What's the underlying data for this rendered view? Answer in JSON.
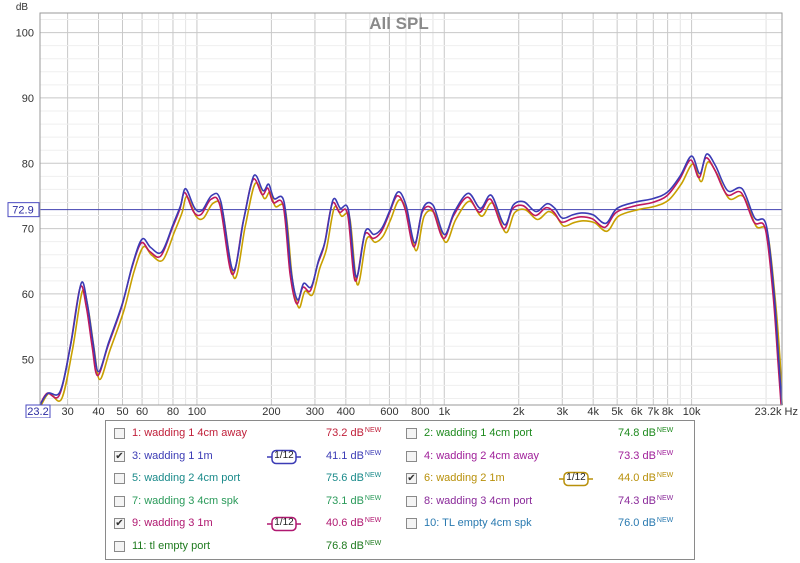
{
  "chart_data": {
    "type": "line",
    "title": "All SPL",
    "ylabel": "dB",
    "xlabel": "Hz",
    "xscale": "log",
    "xlim": [
      23.2,
      23200
    ],
    "ylim": [
      43,
      103
    ],
    "grid": true,
    "ref_line": 72.9,
    "ref_label": "72.9",
    "x_corner_label": "23.2",
    "x_end_label": "23.2k Hz",
    "y_ticks": [
      50,
      60,
      70,
      80,
      90,
      100
    ],
    "y_tick_labels": [
      "50",
      "60",
      "70",
      "80",
      "90",
      "100"
    ],
    "x_ticks": [
      30,
      40,
      50,
      60,
      80,
      100,
      200,
      300,
      400,
      600,
      800,
      1000,
      2000,
      3000,
      4000,
      5000,
      6000,
      7000,
      8000,
      10000
    ],
    "x_tick_labels": [
      "30",
      "40",
      "50",
      "60",
      "80",
      "100",
      "200",
      "300",
      "400",
      "600",
      "800",
      "1k",
      "2k",
      "3k",
      "4k",
      "5k",
      "6k",
      "7k",
      "8k",
      "10k"
    ],
    "series": [
      {
        "name": "3: wadding 1 1m",
        "color": "#3b3bb5",
        "offset": 0.6,
        "dxf": 1.0,
        "points": [
          [
            23.2,
            43
          ],
          [
            25,
            44.8
          ],
          [
            28,
            44.5
          ],
          [
            31,
            52
          ],
          [
            34,
            61
          ],
          [
            36,
            58
          ],
          [
            38,
            52
          ],
          [
            40,
            47.5
          ],
          [
            44,
            52
          ],
          [
            50,
            58
          ],
          [
            55,
            64
          ],
          [
            60,
            67.8
          ],
          [
            65,
            66.5
          ],
          [
            72,
            65.8
          ],
          [
            80,
            70
          ],
          [
            86,
            73
          ],
          [
            90,
            75.5
          ],
          [
            98,
            72.5
          ],
          [
            105,
            72.2
          ],
          [
            115,
            74.5
          ],
          [
            125,
            73.5
          ],
          [
            140,
            63
          ],
          [
            155,
            71
          ],
          [
            170,
            77.5
          ],
          [
            185,
            75.2
          ],
          [
            195,
            76.2
          ],
          [
            205,
            74
          ],
          [
            225,
            73.5
          ],
          [
            240,
            63
          ],
          [
            255,
            58.5
          ],
          [
            270,
            61
          ],
          [
            290,
            60.5
          ],
          [
            310,
            64.5
          ],
          [
            330,
            67.5
          ],
          [
            355,
            73.8
          ],
          [
            380,
            72.5
          ],
          [
            410,
            72.2
          ],
          [
            440,
            62
          ],
          [
            480,
            69
          ],
          [
            520,
            68.5
          ],
          [
            560,
            69.5
          ],
          [
            600,
            72
          ],
          [
            650,
            75
          ],
          [
            700,
            73
          ],
          [
            760,
            67.2
          ],
          [
            820,
            72.5
          ],
          [
            900,
            73
          ],
          [
            1000,
            68.5
          ],
          [
            1100,
            72
          ],
          [
            1250,
            74.8
          ],
          [
            1400,
            72.5
          ],
          [
            1550,
            74.5
          ],
          [
            1750,
            70
          ],
          [
            1900,
            73
          ],
          [
            2100,
            73.5
          ],
          [
            2350,
            72
          ],
          [
            2600,
            73.2
          ],
          [
            2800,
            72.5
          ],
          [
            3000,
            71
          ],
          [
            3300,
            71.5
          ],
          [
            3600,
            71.8
          ],
          [
            4000,
            71.5
          ],
          [
            4500,
            70.2
          ],
          [
            5000,
            72.5
          ],
          [
            6000,
            73.5
          ],
          [
            7000,
            74
          ],
          [
            8000,
            75
          ],
          [
            9000,
            77.5
          ],
          [
            10000,
            80.5
          ],
          [
            10800,
            77.8
          ],
          [
            11500,
            80.8
          ],
          [
            12500,
            79
          ],
          [
            14000,
            75.2
          ],
          [
            16000,
            75.5
          ],
          [
            18000,
            71
          ],
          [
            20000,
            70
          ],
          [
            21500,
            60
          ],
          [
            22500,
            50
          ],
          [
            23200,
            43
          ]
        ]
      },
      {
        "name": "6: wadding 2 1m",
        "color": "#c8a000",
        "offset": -0.6,
        "dxf": 1.012
      },
      {
        "name": "9: wadding 3 1m",
        "color": "#c0185e",
        "offset": 0.0,
        "dxf": 0.992
      }
    ]
  },
  "legend": [
    {
      "label": "1: wadding 1 4cm away",
      "value": "73.2 dB",
      "checked": false,
      "color": "#c0203a",
      "smooth": "",
      "sup": "NEW"
    },
    {
      "label": "2: wadding 1 4cm port",
      "value": "74.8 dB",
      "checked": false,
      "color": "#1e8a1e",
      "smooth": "",
      "sup": "NEW"
    },
    {
      "label": "3: wadding 1 1m",
      "value": "41.1 dB",
      "checked": true,
      "color": "#3b3bb5",
      "smooth": "1/12",
      "sup": "NEW"
    },
    {
      "label": "4: wadding 2 4cm away",
      "value": "73.3 dB",
      "checked": false,
      "color": "#a0209a",
      "smooth": "",
      "sup": "NEW"
    },
    {
      "label": "5: wadding 2 4cm port",
      "value": "75.6 dB",
      "checked": false,
      "color": "#1a8a8a",
      "smooth": "",
      "sup": "NEW"
    },
    {
      "label": "6: wadding 2 1m",
      "value": "44.0 dB",
      "checked": true,
      "color": "#b8900a",
      "smooth": "1/12",
      "sup": "NEW"
    },
    {
      "label": "7: wadding 3 4cm spk",
      "value": "73.1 dB",
      "checked": false,
      "color": "#2a9a5a",
      "smooth": "",
      "sup": "NEW"
    },
    {
      "label": "8: wadding 3 4cm port",
      "value": "74.3 dB",
      "checked": false,
      "color": "#8a2a9a",
      "smooth": "",
      "sup": "NEW"
    },
    {
      "label": "9: wadding 3 1m",
      "value": "40.6 dB",
      "checked": true,
      "color": "#b01870",
      "smooth": "1/12",
      "sup": "NEW"
    },
    {
      "label": "10: TL empty 4cm spk",
      "value": "76.0 dB",
      "checked": false,
      "color": "#2a7ab0",
      "smooth": "",
      "sup": "NEW"
    },
    {
      "label": "11: tl empty port",
      "value": "76.8 dB",
      "checked": false,
      "color": "#1e7a1e",
      "smooth": "",
      "sup": "NEW"
    }
  ]
}
